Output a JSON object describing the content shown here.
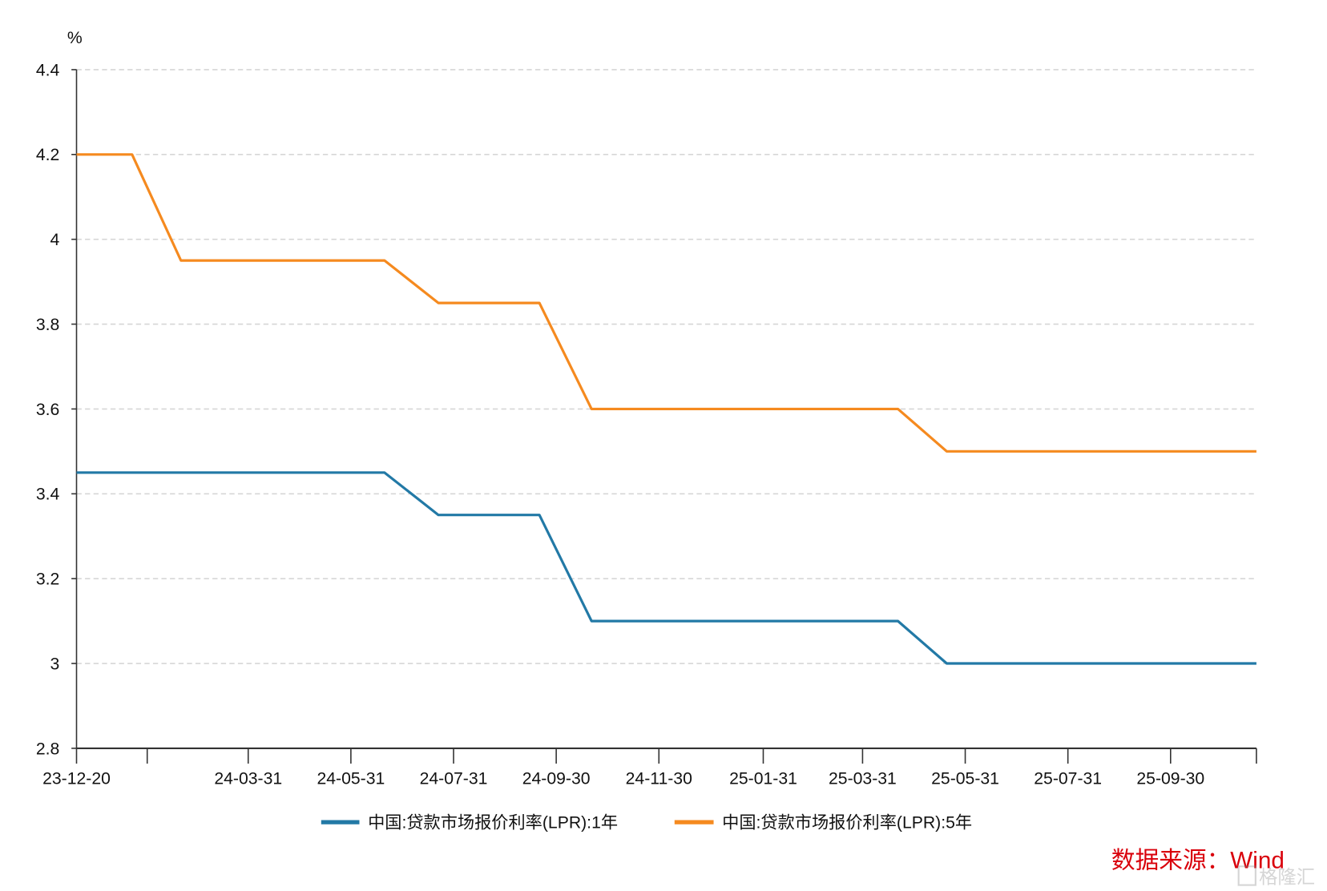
{
  "chart_data": {
    "type": "line",
    "title": "",
    "xlabel": "",
    "ylabel": "%",
    "ylim": [
      2.8,
      4.4
    ],
    "yticks": [
      "2.8",
      "3",
      "3.2",
      "3.4",
      "3.6",
      "3.8",
      "4",
      "4.2",
      "4.4"
    ],
    "xlim": [
      "2023-12-20",
      "2025-11-20"
    ],
    "xticks": [
      {
        "date": "2023-12-20",
        "label": "23-12-20"
      },
      {
        "date": "2024-01-31",
        "label": ""
      },
      {
        "date": "2024-03-31",
        "label": "24-03-31"
      },
      {
        "date": "2024-05-31",
        "label": "24-05-31"
      },
      {
        "date": "2024-07-31",
        "label": "24-07-31"
      },
      {
        "date": "2024-09-30",
        "label": "24-09-30"
      },
      {
        "date": "2024-11-30",
        "label": "24-11-30"
      },
      {
        "date": "2025-01-31",
        "label": "25-01-31"
      },
      {
        "date": "2025-03-31",
        "label": "25-03-31"
      },
      {
        "date": "2025-05-31",
        "label": "25-05-31"
      },
      {
        "date": "2025-07-31",
        "label": "25-07-31"
      },
      {
        "date": "2025-09-30",
        "label": "25-09-30"
      },
      {
        "date": "2025-11-20",
        "label": ""
      }
    ],
    "grid": "horizontal dashed",
    "legend_position": "bottom",
    "x": [
      "2023-12-20",
      "2024-01-22",
      "2024-02-20",
      "2024-03-20",
      "2024-04-22",
      "2024-05-20",
      "2024-06-20",
      "2024-07-22",
      "2024-08-20",
      "2024-09-20",
      "2024-10-21",
      "2024-11-20",
      "2024-12-20",
      "2025-01-20",
      "2025-02-20",
      "2025-03-20",
      "2025-04-21",
      "2025-05-20",
      "2025-06-20",
      "2025-07-21",
      "2025-08-20",
      "2025-09-22",
      "2025-10-20",
      "2025-11-20"
    ],
    "series": [
      {
        "name": "中国:贷款市场报价利率(LPR):1年",
        "color": "#2279a6",
        "values": [
          3.45,
          3.45,
          3.45,
          3.45,
          3.45,
          3.45,
          3.45,
          3.35,
          3.35,
          3.35,
          3.1,
          3.1,
          3.1,
          3.1,
          3.1,
          3.1,
          3.1,
          3.0,
          3.0,
          3.0,
          3.0,
          3.0,
          3.0,
          3.0
        ]
      },
      {
        "name": "中国:贷款市场报价利率(LPR):5年",
        "color": "#f58a1f",
        "values": [
          4.2,
          4.2,
          3.95,
          3.95,
          3.95,
          3.95,
          3.95,
          3.85,
          3.85,
          3.85,
          3.6,
          3.6,
          3.6,
          3.6,
          3.6,
          3.6,
          3.6,
          3.5,
          3.5,
          3.5,
          3.5,
          3.5,
          3.5,
          3.5
        ]
      }
    ]
  },
  "source": "数据来源：Wind",
  "watermark": "格隆汇"
}
